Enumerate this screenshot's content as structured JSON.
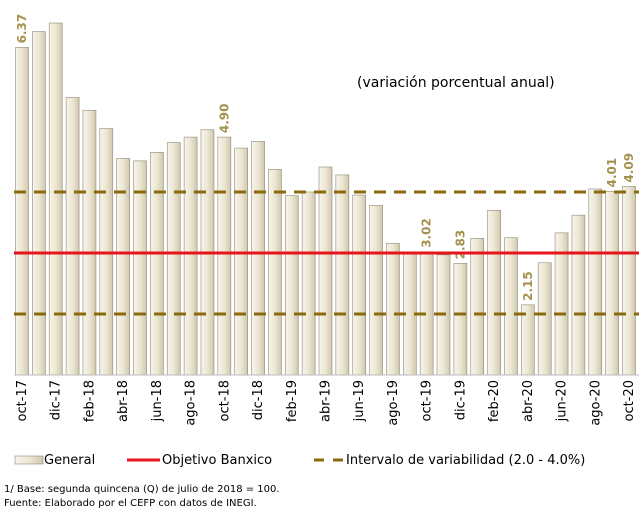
{
  "chart_data": {
    "type": "bar",
    "annotation": "(variación porcentual anual)",
    "categories": [
      "oct-17",
      null,
      "dic-17",
      null,
      "feb-18",
      null,
      "abr-18",
      null,
      "jun-18",
      null,
      "ago-18",
      null,
      "oct-18",
      null,
      "dic-18",
      null,
      "feb-19",
      null,
      "abr-19",
      null,
      "jun-19",
      null,
      "ago-19",
      null,
      "oct-19",
      null,
      "dic-19",
      null,
      "feb-20",
      null,
      "abr-20",
      null,
      "jun-20",
      null,
      "ago-20",
      null,
      "oct-20"
    ],
    "series": [
      {
        "name": "General",
        "color": "#ece7d3",
        "values": [
          6.37,
          6.63,
          6.77,
          5.55,
          5.34,
          5.04,
          4.55,
          4.51,
          4.65,
          4.81,
          4.9,
          5.02,
          4.9,
          4.72,
          4.83,
          4.37,
          3.94,
          4.0,
          4.41,
          4.28,
          3.95,
          3.78,
          3.16,
          3.0,
          3.02,
          2.97,
          2.83,
          3.24,
          3.7,
          3.25,
          2.15,
          2.84,
          3.33,
          3.62,
          4.05,
          4.01,
          4.09
        ],
        "value_labels": [
          "6.37",
          null,
          null,
          null,
          null,
          null,
          null,
          null,
          null,
          null,
          null,
          null,
          "4.90",
          null,
          null,
          null,
          null,
          null,
          null,
          null,
          null,
          null,
          null,
          null,
          "3.02",
          null,
          "2.83",
          null,
          null,
          null,
          "2.15",
          null,
          null,
          null,
          null,
          "4.01",
          "4.09"
        ]
      }
    ],
    "reference_lines": [
      {
        "name": "Objetivo Banxico",
        "values": [
          3
        ],
        "color": "#e8141c",
        "dashed": false
      },
      {
        "name": "Intervalo de variabilidad (2.0 - 4.0%)",
        "values": [
          2,
          4
        ],
        "color": "#8a6a0c",
        "dashed": true
      }
    ],
    "ylim": [
      1,
      7
    ]
  },
  "notes": [
    "1/ Base: segunda quincena (Q) de julio de 2018 = 100.",
    "Fuente: Elaborado por el CEFP con datos de INEGI."
  ]
}
